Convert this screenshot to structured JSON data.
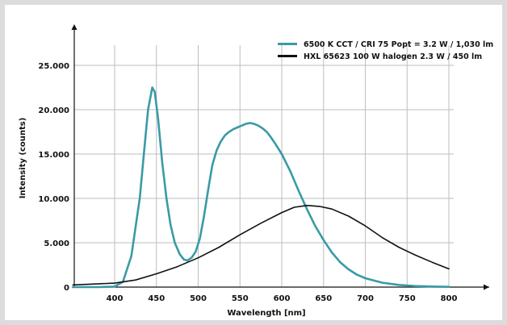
{
  "chart_data": {
    "type": "line",
    "xlabel": "Wavelength [nm]",
    "ylabel": "Intensity (counts)",
    "xlim": [
      350,
      850
    ],
    "ylim": [
      0,
      25000
    ],
    "x_ticks": [
      400,
      450,
      500,
      550,
      600,
      650,
      700,
      750,
      800
    ],
    "y_ticks": [
      0,
      5000,
      10000,
      15000,
      20000,
      25000
    ],
    "x_tick_labels": [
      "400",
      "450",
      "500",
      "550",
      "600",
      "650",
      "700",
      "750",
      "800"
    ],
    "y_tick_labels": [
      "0",
      "5.000",
      "10.000",
      "15.000",
      "20.000",
      "25.000"
    ],
    "grid": true,
    "legend_position": "top-right",
    "series": [
      {
        "name": "6500 K CCT / CRI 75 Popt = 3.2 W / 1,030 lm",
        "color": "#3a9aa6",
        "x": [
          350,
          380,
          400,
          410,
          420,
          430,
          435,
          440,
          445,
          448,
          452,
          457,
          462,
          467,
          472,
          478,
          483,
          487,
          492,
          497,
          502,
          507,
          512,
          517,
          522,
          527,
          532,
          537,
          542,
          547,
          552,
          557,
          562,
          567,
          572,
          577,
          582,
          587,
          592,
          600,
          610,
          620,
          630,
          640,
          650,
          660,
          670,
          680,
          690,
          700,
          720,
          740,
          760,
          780,
          800
        ],
        "y": [
          0,
          0,
          50,
          600,
          3500,
          10000,
          15000,
          20000,
          22500,
          22000,
          19000,
          14000,
          10000,
          7000,
          5000,
          3700,
          3100,
          3000,
          3300,
          4000,
          5500,
          8000,
          11000,
          13800,
          15400,
          16400,
          17100,
          17500,
          17800,
          18000,
          18200,
          18400,
          18500,
          18400,
          18200,
          17900,
          17500,
          16900,
          16200,
          15000,
          13100,
          10900,
          8800,
          6900,
          5300,
          3900,
          2800,
          2000,
          1400,
          1000,
          500,
          250,
          120,
          60,
          30
        ]
      },
      {
        "name": "HXL 65623 100 W halogen 2.3 W / 450 lm",
        "color": "#111111",
        "x": [
          350,
          400,
          425,
          450,
          475,
          500,
          525,
          550,
          575,
          600,
          615,
          630,
          645,
          660,
          680,
          700,
          720,
          740,
          760,
          780,
          800
        ],
        "y": [
          250,
          450,
          800,
          1500,
          2300,
          3300,
          4500,
          5900,
          7200,
          8400,
          9000,
          9200,
          9100,
          8800,
          8000,
          6900,
          5600,
          4500,
          3600,
          2800,
          2050
        ]
      }
    ]
  }
}
